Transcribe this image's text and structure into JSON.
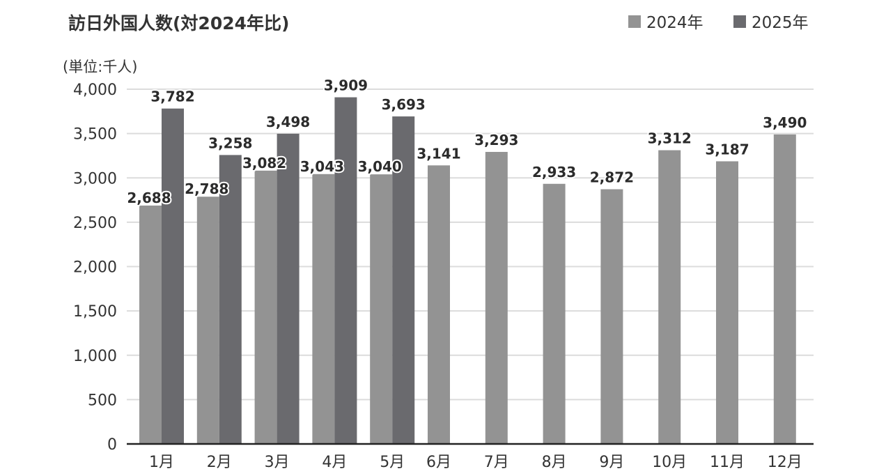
{
  "chart_data": {
    "type": "bar",
    "title": "訪日外国人数(対2024年比)",
    "unit_label": "(単位:千人)",
    "categories": [
      "1月",
      "2月",
      "3月",
      "4月",
      "5月",
      "6月",
      "7月",
      "8月",
      "9月",
      "10月",
      "11月",
      "12月"
    ],
    "series": [
      {
        "name": "2024年",
        "color": "#939393",
        "values": [
          2688,
          2788,
          3082,
          3043,
          3040,
          3141,
          3293,
          2933,
          2872,
          3312,
          3187,
          3490
        ],
        "labels": [
          "2,688",
          "2,788",
          "3,082",
          "3,043",
          "3,040",
          "3,141",
          "3,293",
          "2,933",
          "2,872",
          "3,312",
          "3,187",
          "3,490"
        ]
      },
      {
        "name": "2025年",
        "color": "#6a6a6e",
        "values": [
          3782,
          3258,
          3498,
          3909,
          3693,
          null,
          null,
          null,
          null,
          null,
          null,
          null
        ],
        "labels": [
          "3,782",
          "3,258",
          "3,498",
          "3,909",
          "3,693",
          null,
          null,
          null,
          null,
          null,
          null,
          null
        ]
      }
    ],
    "ylim": [
      0,
      4000
    ],
    "yticks": [
      0,
      500,
      1000,
      1500,
      2000,
      2500,
      3000,
      3500,
      4000
    ],
    "ytick_labels": [
      "0",
      "500",
      "1,000",
      "1,500",
      "2,000",
      "2,500",
      "3,000",
      "3,500",
      "4,000"
    ],
    "grid": true,
    "legend_position": "top-right"
  }
}
